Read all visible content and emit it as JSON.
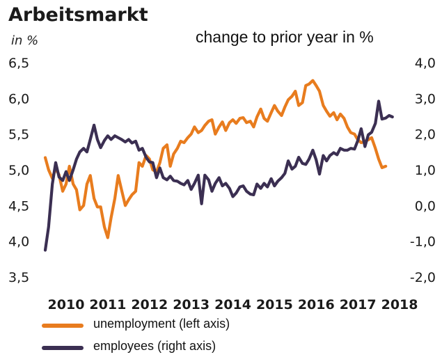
{
  "chart_data": {
    "type": "line",
    "title": "Arbeitsmarkt",
    "left_axis_label": "in %",
    "right_axis_label": "change to prior year in %",
    "left_ylim": [
      3.5,
      6.5
    ],
    "left_yticks": [
      "6,5",
      "6,0",
      "5,5",
      "5,0",
      "4,5",
      "4,0",
      "3,5"
    ],
    "left_ytick_values": [
      6.5,
      6.0,
      5.5,
      5.0,
      4.5,
      4.0,
      3.5
    ],
    "right_ylim": [
      -2.0,
      4.0
    ],
    "right_yticks": [
      "4,0",
      "3,0",
      "2,0",
      "1,0",
      "0,0",
      "-1,0",
      "-2,0"
    ],
    "right_ytick_values": [
      4.0,
      3.0,
      2.0,
      1.0,
      0.0,
      -1.0,
      -2.0
    ],
    "xlim": [
      2010.0,
      2018.35
    ],
    "xticks": [
      "2010",
      "2011",
      "2012",
      "2013",
      "2014",
      "2015",
      "2016",
      "2017",
      "2018"
    ],
    "xtick_values": [
      2010,
      2011,
      2012,
      2013,
      2014,
      2015,
      2016,
      2017,
      2018
    ],
    "grid": false,
    "legend_position": "bottom",
    "series": [
      {
        "name": "unemployment (left axis)",
        "axis": "left",
        "color": "#e87c1e",
        "x": [
          2010.0,
          2010.08,
          2010.17,
          2010.25,
          2010.33,
          2010.42,
          2010.5,
          2010.58,
          2010.67,
          2010.75,
          2010.83,
          2010.92,
          2011.0,
          2011.08,
          2011.17,
          2011.25,
          2011.33,
          2011.42,
          2011.5,
          2011.58,
          2011.67,
          2011.75,
          2011.83,
          2011.92,
          2012.0,
          2012.08,
          2012.17,
          2012.25,
          2012.33,
          2012.42,
          2012.5,
          2012.58,
          2012.67,
          2012.75,
          2012.83,
          2012.92,
          2013.0,
          2013.08,
          2013.17,
          2013.25,
          2013.33,
          2013.42,
          2013.5,
          2013.58,
          2013.67,
          2013.75,
          2013.83,
          2013.92,
          2014.0,
          2014.08,
          2014.17,
          2014.25,
          2014.33,
          2014.42,
          2014.5,
          2014.58,
          2014.67,
          2014.75,
          2014.83,
          2014.92,
          2015.0,
          2015.08,
          2015.17,
          2015.25,
          2015.33,
          2015.42,
          2015.5,
          2015.58,
          2015.67,
          2015.75,
          2015.83,
          2015.92,
          2016.0,
          2016.08,
          2016.17,
          2016.25,
          2016.33,
          2016.42,
          2016.5,
          2016.58,
          2016.67,
          2016.75,
          2016.83,
          2016.92,
          2017.0,
          2017.08,
          2017.17,
          2017.25,
          2017.33,
          2017.42,
          2017.5,
          2017.58,
          2017.67,
          2017.75,
          2017.83,
          2017.92,
          2018.0,
          2018.08,
          2018.17
        ],
        "values": [
          5.17,
          5.0,
          4.88,
          5.02,
          4.93,
          4.7,
          4.8,
          5.05,
          4.8,
          4.72,
          4.44,
          4.5,
          4.8,
          4.92,
          4.6,
          4.48,
          4.48,
          4.2,
          4.05,
          4.33,
          4.6,
          4.92,
          4.72,
          4.5,
          4.58,
          4.65,
          4.7,
          5.1,
          5.05,
          5.2,
          5.15,
          5.0,
          4.97,
          5.1,
          5.3,
          5.35,
          5.05,
          5.22,
          5.3,
          5.4,
          5.38,
          5.45,
          5.5,
          5.6,
          5.52,
          5.55,
          5.62,
          5.68,
          5.7,
          5.5,
          5.6,
          5.67,
          5.55,
          5.66,
          5.7,
          5.65,
          5.72,
          5.73,
          5.66,
          5.68,
          5.6,
          5.74,
          5.85,
          5.72,
          5.68,
          5.8,
          5.9,
          5.82,
          5.76,
          5.88,
          5.98,
          6.03,
          6.1,
          5.9,
          5.94,
          6.18,
          6.2,
          6.25,
          6.18,
          6.1,
          5.9,
          5.82,
          5.75,
          5.8,
          5.7,
          5.78,
          5.72,
          5.6,
          5.52,
          5.5,
          5.42,
          5.38,
          5.4,
          5.42,
          5.45,
          5.3,
          5.15,
          5.03,
          5.05
        ]
      },
      {
        "name": "employees (right axis)",
        "axis": "right",
        "color": "#3b2f52",
        "x": [
          2010.0,
          2010.08,
          2010.17,
          2010.25,
          2010.33,
          2010.42,
          2010.5,
          2010.58,
          2010.67,
          2010.75,
          2010.83,
          2010.92,
          2011.0,
          2011.08,
          2011.17,
          2011.25,
          2011.33,
          2011.42,
          2011.5,
          2011.58,
          2011.67,
          2011.75,
          2011.83,
          2011.92,
          2012.0,
          2012.08,
          2012.17,
          2012.25,
          2012.33,
          2012.42,
          2012.5,
          2012.58,
          2012.67,
          2012.75,
          2012.83,
          2012.92,
          2013.0,
          2013.08,
          2013.17,
          2013.25,
          2013.33,
          2013.42,
          2013.5,
          2013.58,
          2013.67,
          2013.75,
          2013.83,
          2013.92,
          2014.0,
          2014.08,
          2014.17,
          2014.25,
          2014.33,
          2014.42,
          2014.5,
          2014.58,
          2014.67,
          2014.75,
          2014.83,
          2014.92,
          2015.0,
          2015.08,
          2015.17,
          2015.25,
          2015.33,
          2015.42,
          2015.5,
          2015.58,
          2015.67,
          2015.75,
          2015.83,
          2015.92,
          2016.0,
          2016.08,
          2016.17,
          2016.25,
          2016.33,
          2016.42,
          2016.5,
          2016.58,
          2016.67,
          2016.75,
          2016.83,
          2016.92,
          2017.0,
          2017.08,
          2017.17,
          2017.25,
          2017.33,
          2017.42,
          2017.5,
          2017.58,
          2017.67,
          2017.75,
          2017.83,
          2017.92,
          2018.0,
          2018.08,
          2018.17,
          2018.25,
          2018.33
        ],
        "values": [
          -1.25,
          -0.6,
          0.6,
          1.2,
          0.8,
          0.7,
          0.95,
          0.7,
          1.0,
          1.3,
          1.5,
          1.6,
          1.5,
          1.85,
          2.25,
          1.85,
          1.62,
          1.82,
          1.95,
          1.85,
          1.95,
          1.9,
          1.85,
          1.78,
          1.85,
          1.75,
          1.8,
          1.55,
          1.6,
          1.35,
          1.22,
          1.2,
          0.78,
          1.05,
          0.78,
          0.72,
          0.82,
          0.7,
          0.68,
          0.62,
          0.58,
          0.7,
          0.45,
          0.62,
          0.85,
          0.05,
          0.85,
          0.72,
          0.4,
          0.62,
          0.78,
          0.55,
          0.62,
          0.48,
          0.25,
          0.35,
          0.52,
          0.55,
          0.4,
          0.32,
          0.3,
          0.6,
          0.48,
          0.62,
          0.52,
          0.75,
          0.55,
          0.68,
          0.78,
          0.9,
          1.25,
          1.02,
          1.1,
          1.35,
          1.18,
          1.15,
          1.3,
          1.55,
          1.28,
          0.88,
          1.4,
          1.25,
          1.4,
          1.48,
          1.42,
          1.6,
          1.55,
          1.55,
          1.6,
          1.58,
          1.82,
          2.15,
          1.65,
          1.98,
          2.05,
          2.3,
          2.92,
          2.42,
          2.45,
          2.52,
          2.48
        ]
      }
    ]
  }
}
